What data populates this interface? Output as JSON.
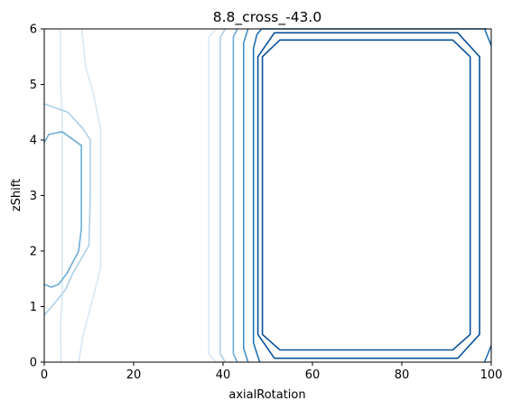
{
  "chart_data": {
    "type": "contour",
    "title": "8.8_cross_-43.0",
    "xlabel": "axialRotation",
    "ylabel": "zShift",
    "xlim": [
      0,
      100
    ],
    "ylim": [
      0,
      6
    ],
    "xticks": [
      "0",
      "20",
      "40",
      "60",
      "80",
      "100"
    ],
    "yticks": [
      "0",
      "1",
      "2",
      "3",
      "4",
      "5",
      "6"
    ],
    "colormap": "Blues",
    "grid": false,
    "contours": [
      {
        "level": 1,
        "color": "#dae8f5",
        "segments": [
          [
            [
              3.8,
              0
            ],
            [
              3.6,
              0.6
            ],
            [
              4,
              1.1
            ],
            [
              4,
              4.5
            ],
            [
              3.6,
              5.1
            ],
            [
              3.6,
              6
            ]
          ],
          [
            [
              38.4,
              0
            ],
            [
              36.8,
              0.15
            ],
            [
              36.8,
              5.85
            ],
            [
              38.4,
              6
            ]
          ],
          [
            [
              7.7,
              0
            ],
            [
              8.7,
              0.5
            ],
            [
              10.4,
              1
            ],
            [
              12.6,
              1.7
            ],
            [
              12.6,
              4.2
            ],
            [
              10.8,
              4.9
            ],
            [
              9.3,
              5.3
            ],
            [
              8.4,
              6
            ]
          ]
        ]
      },
      {
        "level": 2,
        "color": "#add0e6",
        "segments": [
          [
            [
              0,
              0.85
            ],
            [
              1.7,
              1
            ],
            [
              4.7,
              1.3
            ],
            [
              6.4,
              1.6
            ],
            [
              10,
              2.1
            ],
            [
              10.3,
              3
            ],
            [
              10.3,
              4
            ],
            [
              8.7,
              4.2
            ],
            [
              5.3,
              4.5
            ],
            [
              0,
              4.65
            ]
          ],
          [
            [
              40.5,
              0
            ],
            [
              39.4,
              0.15
            ],
            [
              39.4,
              5.85
            ],
            [
              40.5,
              6
            ]
          ]
        ]
      },
      {
        "level": 3,
        "color": "#6baed6",
        "segments": [
          [
            [
              0,
              1.4
            ],
            [
              1.6,
              1.35
            ],
            [
              3.2,
              1.4
            ],
            [
              5.1,
              1.6
            ],
            [
              7.7,
              2
            ],
            [
              8.3,
              2.4
            ],
            [
              8.3,
              3.6
            ],
            [
              8.3,
              3.9
            ],
            [
              4,
              4.15
            ],
            [
              1,
              4.1
            ],
            [
              0,
              3.95
            ]
          ],
          [
            [
              43.2,
              0
            ],
            [
              42.3,
              0.15
            ],
            [
              42.3,
              5.85
            ],
            [
              43.2,
              6
            ]
          ]
        ]
      },
      {
        "level": 4,
        "color": "#4292c6",
        "segments": [
          [
            [
              45.6,
              0
            ],
            [
              44.6,
              0.25
            ],
            [
              44.6,
              5.75
            ],
            [
              45.6,
              6
            ]
          ]
        ]
      },
      {
        "level": 5,
        "color": "#2171b5",
        "segments": [
          [
            [
              48.2,
              0
            ],
            [
              46.8,
              0.35
            ],
            [
              46.8,
              5.65
            ],
            [
              47.6,
              5.9
            ],
            [
              48.6,
              6
            ]
          ],
          [
            [
              98.5,
              0
            ],
            [
              100,
              0.3
            ]
          ],
          [
            [
              98.5,
              6
            ],
            [
              100,
              5.7
            ]
          ],
          [
            [
              48.6,
              6
            ],
            [
              99,
              6
            ]
          ]
        ]
      },
      {
        "level": 6,
        "color": "#08519c",
        "segments": [
          [
            [
              52.7,
              0.22
            ],
            [
              91.4,
              0.22
            ],
            [
              95.3,
              0.5
            ],
            [
              95.3,
              5.5
            ],
            [
              91.4,
              5.8
            ],
            [
              52.7,
              5.8
            ],
            [
              48.8,
              5.5
            ],
            [
              48.8,
              0.5
            ],
            [
              52.7,
              0.22
            ]
          ],
          [
            [
              51.5,
              0.07
            ],
            [
              92.5,
              0.07
            ],
            [
              97.4,
              0.5
            ],
            [
              97.4,
              5.5
            ],
            [
              92.5,
              5.93
            ],
            [
              51.5,
              5.93
            ],
            [
              47.8,
              5.5
            ],
            [
              47.8,
              0.5
            ],
            [
              51.5,
              0.07
            ]
          ]
        ]
      }
    ]
  }
}
